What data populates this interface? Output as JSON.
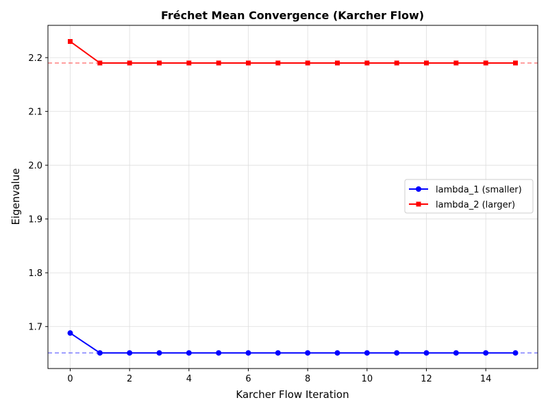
{
  "chart_data": {
    "type": "line",
    "title": "Fréchet Mean Convergence (Karcher Flow)",
    "xlabel": "Karcher Flow Iteration",
    "ylabel": "Eigenvalue",
    "xlim": [
      -0.75,
      15.75
    ],
    "ylim": [
      1.622,
      2.26
    ],
    "xticks": [
      0,
      2,
      4,
      6,
      8,
      10,
      12,
      14
    ],
    "yticks": [
      1.7,
      1.8,
      1.9,
      2.0,
      2.1,
      2.2
    ],
    "ytick_labels": [
      "1.7",
      "1.8",
      "1.9",
      "2.0",
      "2.1",
      "2.2"
    ],
    "grid": true,
    "legend_position": "center-right",
    "x": [
      0,
      1,
      2,
      3,
      4,
      5,
      6,
      7,
      8,
      9,
      10,
      11,
      12,
      13,
      14,
      15
    ],
    "series": [
      {
        "name": "lambda_1 (smaller)",
        "color": "#0000ff",
        "marker": "circle",
        "values": [
          1.688,
          1.651,
          1.651,
          1.651,
          1.651,
          1.651,
          1.651,
          1.651,
          1.651,
          1.651,
          1.651,
          1.651,
          1.651,
          1.651,
          1.651,
          1.651
        ]
      },
      {
        "name": "lambda_2 (larger)",
        "color": "#ff0000",
        "marker": "square",
        "values": [
          2.23,
          2.19,
          2.19,
          2.19,
          2.19,
          2.19,
          2.19,
          2.19,
          2.19,
          2.19,
          2.19,
          2.19,
          2.19,
          2.19,
          2.19,
          2.19
        ]
      }
    ],
    "reference_lines": [
      {
        "y": 1.651,
        "color": "#0000ff",
        "style": "dashed"
      },
      {
        "y": 2.19,
        "color": "#ff0000",
        "style": "dashed"
      }
    ]
  }
}
